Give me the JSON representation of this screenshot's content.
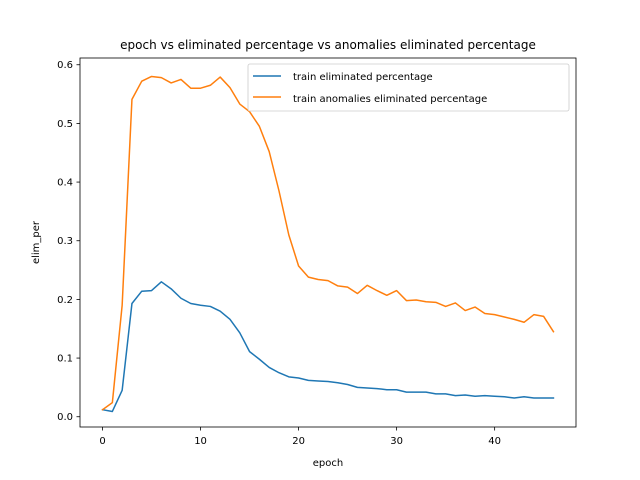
{
  "chart_data": {
    "type": "line",
    "title": "epoch vs eliminated percentage vs anomalies eliminated percentage",
    "xlabel": "epoch",
    "ylabel": "elim_per",
    "xlim": [
      -2.3,
      48.3
    ],
    "ylim": [
      -0.0175,
      0.6115
    ],
    "xticks": [
      0,
      10,
      20,
      30,
      40
    ],
    "yticks": [
      0.0,
      0.1,
      0.2,
      0.3,
      0.4,
      0.5,
      0.6
    ],
    "ytick_labels": [
      "0.0",
      "0.1",
      "0.2",
      "0.3",
      "0.4",
      "0.5",
      "0.6"
    ],
    "grid": false,
    "legend_position": "top-right",
    "x": [
      0,
      1,
      2,
      3,
      4,
      5,
      6,
      7,
      8,
      9,
      10,
      11,
      12,
      13,
      14,
      15,
      16,
      17,
      18,
      19,
      20,
      21,
      22,
      23,
      24,
      25,
      26,
      27,
      28,
      29,
      30,
      31,
      32,
      33,
      34,
      35,
      36,
      37,
      38,
      39,
      40,
      41,
      42,
      43,
      44,
      45,
      46
    ],
    "series": [
      {
        "name": "train eliminated percentage",
        "color": "#1f77b4",
        "values": [
          0.012,
          0.009,
          0.045,
          0.193,
          0.214,
          0.215,
          0.23,
          0.218,
          0.202,
          0.193,
          0.19,
          0.188,
          0.18,
          0.166,
          0.143,
          0.111,
          0.098,
          0.084,
          0.075,
          0.068,
          0.066,
          0.062,
          0.061,
          0.06,
          0.058,
          0.055,
          0.05,
          0.049,
          0.048,
          0.046,
          0.046,
          0.042,
          0.042,
          0.042,
          0.039,
          0.039,
          0.036,
          0.037,
          0.035,
          0.036,
          0.035,
          0.034,
          0.032,
          0.034,
          0.032,
          0.032,
          0.032
        ]
      },
      {
        "name": "train anomalies eliminated percentage",
        "color": "#ff7f0e",
        "values": [
          0.012,
          0.024,
          0.19,
          0.541,
          0.572,
          0.58,
          0.578,
          0.569,
          0.575,
          0.56,
          0.56,
          0.565,
          0.579,
          0.561,
          0.533,
          0.52,
          0.495,
          0.452,
          0.385,
          0.31,
          0.257,
          0.238,
          0.234,
          0.232,
          0.223,
          0.221,
          0.21,
          0.224,
          0.215,
          0.207,
          0.215,
          0.198,
          0.199,
          0.196,
          0.195,
          0.188,
          0.194,
          0.181,
          0.187,
          0.176,
          0.174,
          0.17,
          0.166,
          0.161,
          0.174,
          0.171,
          0.145
        ]
      }
    ]
  }
}
